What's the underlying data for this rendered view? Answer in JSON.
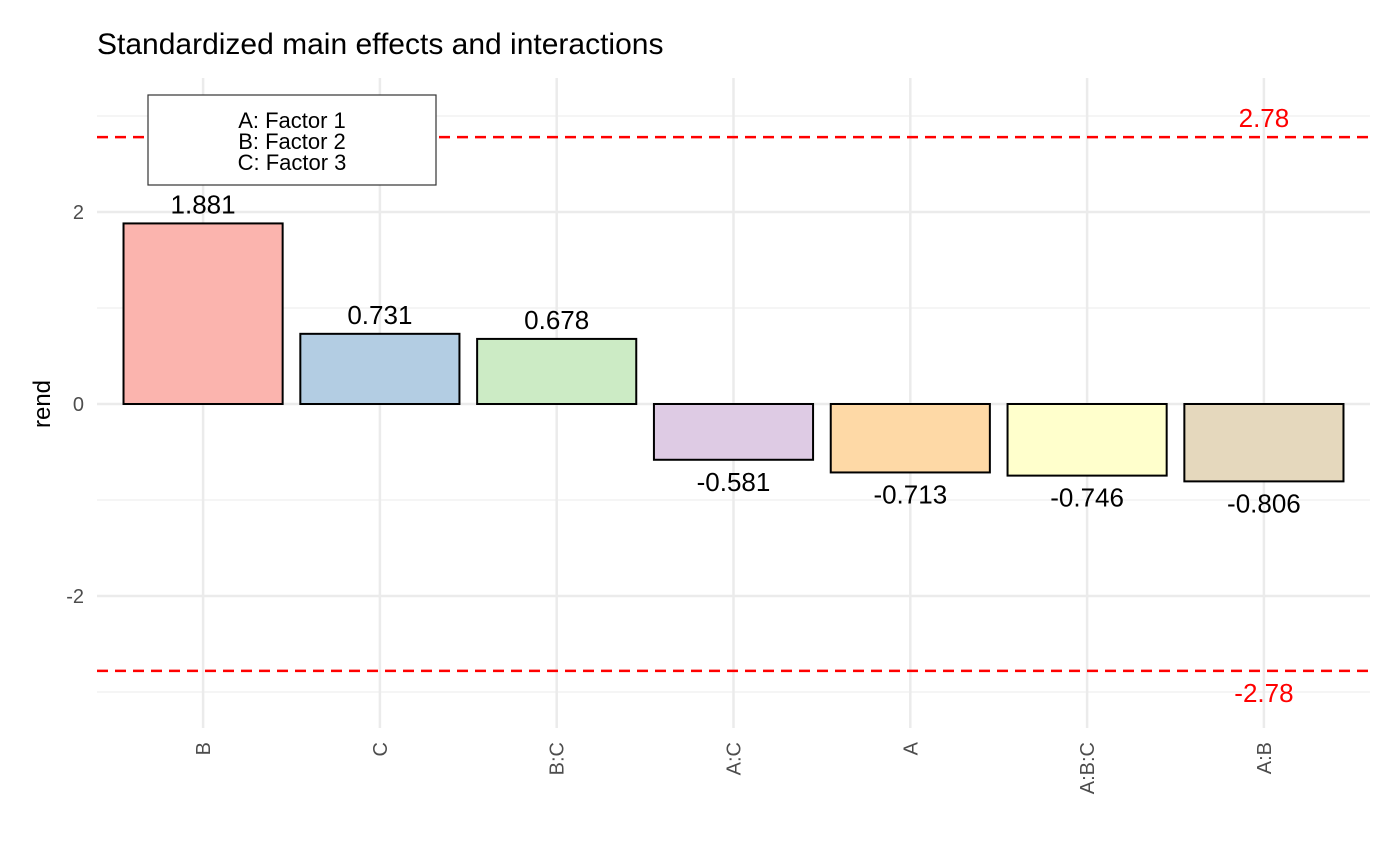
{
  "chart_data": {
    "type": "bar",
    "title": "Standardized main effects and interactions",
    "xlabel": "",
    "ylabel": "rend",
    "categories": [
      "B",
      "C",
      "B:C",
      "A:C",
      "A",
      "A:B:C",
      "A:B"
    ],
    "values": [
      1.881,
      0.731,
      0.678,
      -0.581,
      -0.713,
      -0.746,
      -0.806
    ],
    "value_labels": [
      "1.881",
      "0.731",
      "0.678",
      "-0.581",
      "-0.713",
      "-0.746",
      "-0.806"
    ],
    "bar_colors": [
      "#FBB4AE",
      "#B3CDE3",
      "#CCEBC5",
      "#DECBE4",
      "#FED9A6",
      "#FFFFCC",
      "#E5D8BD"
    ],
    "ylim": [
      -3.4,
      3.4
    ],
    "yticks": [
      -2,
      0,
      2
    ],
    "ytick_labels": [
      "-2",
      "0",
      "2"
    ],
    "reference_lines": [
      {
        "value": 2.78,
        "label": "2.78",
        "color": "#FF0000",
        "style": "dashed"
      },
      {
        "value": -2.78,
        "label": "-2.78",
        "color": "#FF0000",
        "style": "dashed"
      }
    ],
    "legend": {
      "placement": "top-left",
      "entries": [
        "A: Factor 1",
        "B: Factor 2",
        "C: Factor 3"
      ]
    },
    "grid": true
  }
}
